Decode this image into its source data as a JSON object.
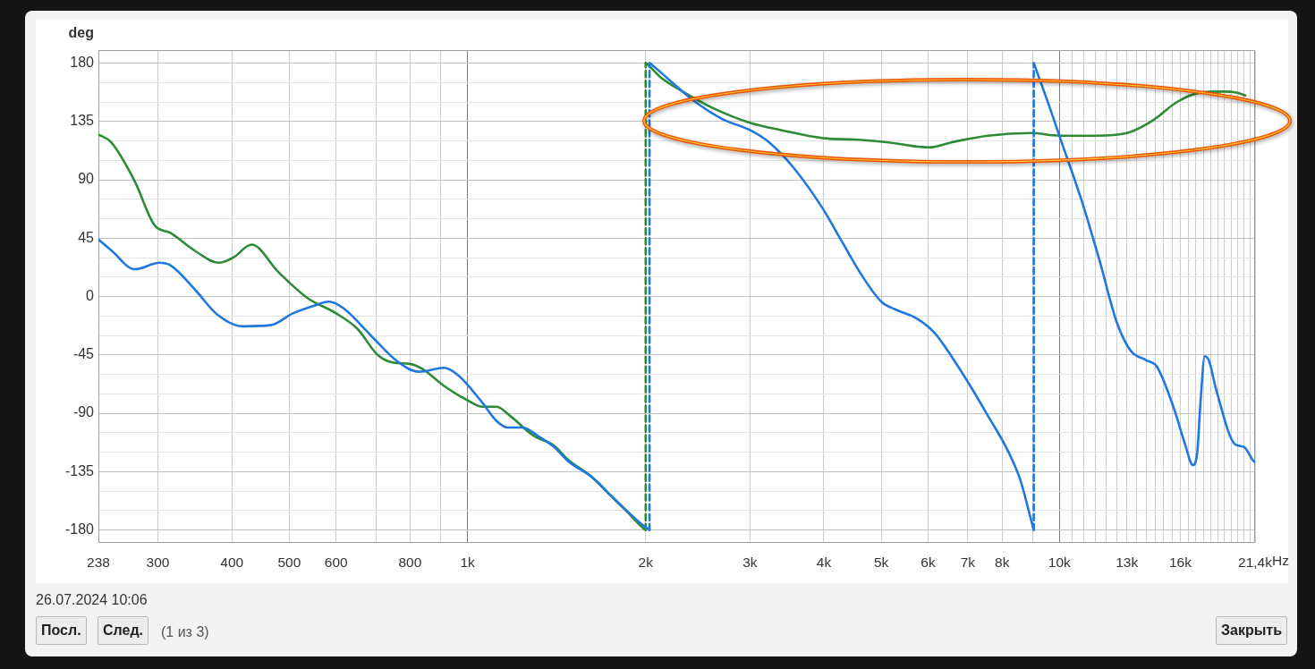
{
  "chart_data": {
    "type": "line",
    "ylabel": "deg",
    "xlabel": "Hz",
    "log": "x",
    "grid": true,
    "marker": "none",
    "xlim": [
      238,
      21400
    ],
    "xticks": [
      238,
      300,
      400,
      500,
      600,
      {
        "value": 700,
        "label": null
      },
      800,
      {
        "value": 900,
        "label": null
      },
      {
        "value": 1000,
        "label": "1k"
      },
      {
        "value": 2000,
        "label": "2k"
      },
      {
        "value": 3000,
        "label": "3k"
      },
      {
        "value": 4000,
        "label": "4k"
      },
      {
        "value": 5000,
        "label": "5k"
      },
      {
        "value": 6000,
        "label": "6k"
      },
      {
        "value": 7000,
        "label": "7k"
      },
      {
        "value": 8000,
        "label": "8k"
      },
      {
        "value": 9000,
        "label": null
      },
      {
        "value": 10000,
        "label": "10k"
      },
      {
        "value": 10500,
        "label": null
      },
      {
        "value": 11000,
        "label": null
      },
      {
        "value": 11500,
        "label": null
      },
      {
        "value": 12000,
        "label": null
      },
      {
        "value": 12500,
        "label": null
      },
      {
        "value": 13000,
        "label": "13k"
      },
      {
        "value": 13500,
        "label": null
      },
      {
        "value": 14000,
        "label": null
      },
      {
        "value": 14500,
        "label": null
      },
      {
        "value": 15000,
        "label": null
      },
      {
        "value": 15500,
        "label": null
      },
      {
        "value": 16000,
        "label": "16k"
      },
      {
        "value": 16500,
        "label": null
      },
      {
        "value": 17000,
        "label": null
      },
      {
        "value": 17500,
        "label": null
      },
      {
        "value": 18000,
        "label": null
      },
      {
        "value": 18500,
        "label": null
      },
      {
        "value": 19000,
        "label": null
      },
      {
        "value": 19500,
        "label": null
      },
      {
        "value": 20000,
        "label": null
      },
      {
        "value": 20500,
        "label": null
      },
      {
        "value": 21000,
        "label": null
      },
      {
        "value": 21400,
        "label": "21,4k"
      }
    ],
    "ylim": [
      -190,
      190
    ],
    "yticks": [
      -180,
      {
        "value": -165,
        "label": null
      },
      {
        "value": -150,
        "label": null
      },
      -135,
      {
        "value": -120,
        "label": null
      },
      {
        "value": -105,
        "label": null
      },
      -90,
      {
        "value": -75,
        "label": null
      },
      {
        "value": -60,
        "label": null
      },
      -45,
      {
        "value": -30,
        "label": null
      },
      {
        "value": -15,
        "label": null
      },
      0,
      {
        "value": 15,
        "label": null
      },
      {
        "value": 30,
        "label": null
      },
      45,
      {
        "value": 60,
        "label": null
      },
      {
        "value": 75,
        "label": null
      },
      90,
      {
        "value": 105,
        "label": null
      },
      {
        "value": 120,
        "label": null
      },
      135,
      {
        "value": 150,
        "label": null
      },
      {
        "value": 165,
        "label": null
      },
      180
    ],
    "series": [
      {
        "color": "#2e8b35",
        "x": [
          238,
          250,
          274,
          296,
          315,
          347,
          380,
          402,
          432,
          479,
          536,
          600,
          652,
          705,
          750,
          800,
          840,
          913,
          1000,
          1060,
          1120,
          1180,
          1290,
          1400,
          1480,
          1610,
          1750,
          1870,
          1985,
          2000,
          2000,
          2015,
          2120,
          2310,
          2580,
          3000,
          3410,
          4000,
          4510,
          5110,
          6020,
          6590,
          7570,
          8950,
          10000,
          11500,
          13000,
          14400,
          15800,
          17200,
          19000,
          20000,
          20600
        ],
        "values": [
          125,
          119,
          89,
          55,
          49,
          35,
          26,
          30,
          40,
          19,
          -1,
          -13,
          -25,
          -45,
          -51,
          -52,
          -56,
          -69,
          -80,
          -85,
          -85,
          -92,
          -107,
          -115,
          -126,
          -138,
          -154,
          -167,
          -179,
          -180,
          180,
          179,
          169,
          158,
          146,
          134,
          128,
          122,
          121,
          119,
          115,
          119,
          124,
          126,
          124,
          124,
          126,
          136,
          150,
          157,
          158,
          157,
          155
        ]
      },
      {
        "color": "#1f77e0",
        "x": [
          238,
          251,
          274,
          302,
          315,
          347,
          378,
          417,
          466,
          507,
          551,
          583,
          617,
          690,
          761,
          828,
          913,
          966,
          1060,
          1120,
          1170,
          1240,
          1320,
          1400,
          1480,
          1630,
          1770,
          1950,
          2015,
          2030,
          2030,
          2045,
          2180,
          2410,
          2690,
          3010,
          3230,
          3560,
          3980,
          4270,
          4640,
          5000,
          5280,
          5740,
          6150,
          6590,
          7070,
          7570,
          8120,
          8580,
          9000,
          9050,
          9050,
          9100,
          9590,
          10100,
          10900,
          11700,
          12500,
          13200,
          14000,
          14600,
          15600,
          16300,
          16800,
          17100,
          17300,
          17600,
          17900,
          18400,
          19800,
          20500,
          21200,
          21400
        ],
        "values": [
          44,
          35,
          21,
          26,
          24,
          5,
          -14,
          -23,
          -22,
          -13,
          -7,
          -4,
          -9,
          -31,
          -50,
          -58,
          -55,
          -61,
          -82,
          -96,
          -101,
          -101,
          -108,
          -116,
          -127,
          -140,
          -156,
          -174,
          -179,
          -180,
          180,
          179,
          168,
          151,
          137,
          128,
          119,
          99,
          68,
          44,
          16,
          -4,
          -10,
          -17,
          -28,
          -47,
          -69,
          -92,
          -116,
          -141,
          -176,
          -180,
          180,
          177,
          148,
          118,
          74,
          27,
          -20,
          -42,
          -49,
          -54,
          -86,
          -114,
          -130,
          -119,
          -83,
          -46,
          -50,
          -72,
          -114,
          -116,
          -126,
          -128
        ]
      }
    ],
    "annotations": [
      "26.07.2024 10:06",
      "Посл.",
      "След.",
      "(1 из 3)",
      "Закрыть"
    ]
  }
}
